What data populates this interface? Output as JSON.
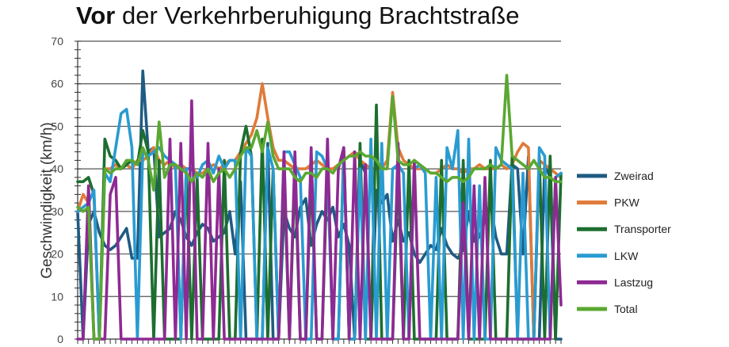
{
  "title": {
    "bold": "Vor",
    "rest": " der Verkehrberuhigung Brachtstraße"
  },
  "chart_data": {
    "type": "line",
    "title": "Vor der Verkehrberuhigung Brachtstraße",
    "xlabel": "",
    "ylabel": "Geschwindigkeit (km/h)",
    "ylim": [
      0,
      70
    ],
    "yticks": [
      0,
      10,
      20,
      30,
      40,
      50,
      60,
      70
    ],
    "grid": true,
    "legend": "right",
    "series": [
      {
        "name": "Zweirad",
        "color": "#1f5b83",
        "values": [
          30,
          0,
          27,
          30,
          25,
          22,
          21,
          22,
          24,
          26,
          19,
          19,
          63,
          44,
          45,
          24,
          25,
          26,
          30,
          28,
          24,
          22,
          25,
          27,
          26,
          23,
          24,
          25,
          30,
          20,
          37,
          0,
          0,
          0,
          0,
          46,
          0,
          0,
          30,
          26,
          24,
          31,
          33,
          22,
          27,
          30,
          28,
          31,
          24,
          27,
          22,
          0,
          42,
          39,
          0,
          35,
          32,
          34,
          23,
          28,
          23,
          25,
          20,
          18,
          20,
          22,
          21,
          26,
          22,
          20,
          19,
          21,
          30,
          23,
          24,
          28,
          32,
          24,
          20,
          20,
          41,
          40,
          20,
          43,
          0,
          0,
          41,
          38,
          0,
          0
        ]
      },
      {
        "name": "PKW",
        "color": "#e07b39",
        "values": [
          30,
          34,
          32,
          0,
          0,
          40,
          40,
          41,
          40,
          41,
          40,
          42,
          42,
          43,
          45,
          42,
          41,
          42,
          40,
          41,
          40,
          40,
          39,
          39,
          40,
          41,
          40,
          41,
          42,
          42,
          44,
          46,
          48,
          52,
          60,
          52,
          45,
          42,
          42,
          41,
          40,
          40,
          40,
          41,
          42,
          41,
          40,
          40,
          41,
          42,
          43,
          44,
          42,
          41,
          40,
          40,
          40,
          42,
          58,
          45,
          42,
          41,
          40,
          40,
          40,
          39,
          39,
          40,
          41,
          40,
          40,
          39,
          40,
          40,
          41,
          40,
          40,
          40,
          41,
          40,
          41,
          44,
          46,
          45,
          0,
          42,
          41,
          40,
          39,
          38
        ]
      },
      {
        "name": "Transporter",
        "color": "#1c6e2f",
        "values": [
          37,
          37,
          38,
          34,
          0,
          47,
          43,
          42,
          40,
          41,
          42,
          41,
          49,
          44,
          0,
          42,
          0,
          0,
          0,
          0,
          40,
          0,
          38,
          0,
          0,
          0,
          0,
          42,
          0,
          0,
          44,
          50,
          43,
          0,
          47,
          0,
          40,
          0,
          40,
          0,
          40,
          0,
          0,
          40,
          0,
          0,
          42,
          0,
          0,
          45,
          0,
          0,
          46,
          0,
          0,
          55,
          0,
          0,
          0,
          40,
          0,
          42,
          0,
          0,
          0,
          0,
          0,
          42,
          0,
          0,
          0,
          42,
          0,
          0,
          0,
          0,
          42,
          0,
          0,
          0,
          43,
          0,
          0,
          0,
          0,
          43,
          0,
          43,
          0,
          39
        ]
      },
      {
        "name": "LKW",
        "color": "#2a9bd1",
        "values": [
          30,
          31,
          32,
          35,
          0,
          39,
          37,
          45,
          53,
          54,
          45,
          0,
          44,
          43,
          44,
          45,
          43,
          42,
          41,
          0,
          40,
          40,
          38,
          41,
          42,
          39,
          43,
          40,
          42,
          42,
          0,
          45,
          43,
          0,
          0,
          45,
          40,
          0,
          44,
          44,
          41,
          38,
          0,
          0,
          44,
          43,
          40,
          0,
          0,
          44,
          0,
          0,
          40,
          0,
          47,
          0,
          46,
          0,
          40,
          41,
          39,
          0,
          40,
          41,
          39,
          0,
          38,
          0,
          45,
          40,
          49,
          0,
          47,
          0,
          36,
          0,
          0,
          45,
          42,
          41,
          40,
          0,
          39,
          0,
          0,
          45,
          43,
          0,
          38,
          39
        ]
      },
      {
        "name": "Lastzug",
        "color": "#8e2a93",
        "values": [
          0,
          0,
          36,
          0,
          0,
          0,
          34,
          38,
          0,
          0,
          0,
          0,
          0,
          0,
          0,
          0,
          0,
          47,
          0,
          46,
          0,
          56,
          0,
          0,
          46,
          0,
          40,
          0,
          0,
          0,
          0,
          0,
          0,
          0,
          0,
          0,
          0,
          0,
          44,
          0,
          44,
          0,
          0,
          45,
          0,
          0,
          47,
          0,
          40,
          45,
          0,
          44,
          0,
          41,
          0,
          0,
          0,
          0,
          0,
          46,
          0,
          0,
          42,
          0,
          0,
          0,
          0,
          0,
          0,
          0,
          0,
          32,
          0,
          36,
          0,
          38,
          0,
          0,
          0,
          0,
          0,
          0,
          0,
          0,
          0,
          0,
          0,
          0,
          38,
          8
        ]
      },
      {
        "name": "Total",
        "color": "#5aa832",
        "values": [
          31,
          30,
          31,
          0,
          0,
          40,
          39,
          40,
          40,
          42,
          42,
          41,
          45,
          42,
          35,
          51,
          38,
          41,
          41,
          40,
          39,
          37,
          39,
          38,
          40,
          37,
          39,
          40,
          38,
          40,
          43,
          45,
          45,
          49,
          44,
          51,
          43,
          40,
          40,
          40,
          38,
          37,
          39,
          39,
          38,
          40,
          40,
          39,
          41,
          42,
          43,
          43,
          44,
          43,
          43,
          42,
          40,
          40,
          57,
          42,
          41,
          41,
          42,
          41,
          40,
          39,
          39,
          38,
          37,
          38,
          38,
          37,
          38,
          40,
          40,
          40,
          41,
          40,
          41,
          62,
          43,
          42,
          41,
          40,
          42,
          40,
          38,
          38,
          37,
          37
        ]
      }
    ]
  }
}
